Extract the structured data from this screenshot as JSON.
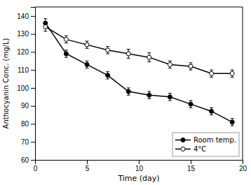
{
  "chart_data": {
    "type": "line",
    "xlabel": "Time (day)",
    "ylabel": "Anthocyanin Conc. (mg/L)",
    "x": [
      1,
      3,
      5,
      7,
      9,
      11,
      13,
      15,
      17,
      19
    ],
    "series": [
      {
        "name": "Room temp.",
        "color": "black",
        "marker": "circle",
        "line_style": "solid",
        "values": [
          136,
          119,
          113,
          107,
          98,
          96,
          95,
          91,
          87,
          81
        ],
        "errors": [
          2.5,
          2.0,
          2.0,
          2.0,
          2.0,
          2.0,
          2.0,
          2.0,
          2.0,
          2.0
        ]
      },
      {
        "name": "4°C",
        "color": "black",
        "marker": "open-circle",
        "line_style": "solid",
        "values": [
          134,
          127,
          124,
          121,
          119,
          117,
          113,
          112,
          108,
          108
        ],
        "errors": [
          2.5,
          2.0,
          2.0,
          2.0,
          2.5,
          2.5,
          2.0,
          2.0,
          2.0,
          2.0
        ]
      }
    ],
    "xlim": [
      0,
      20
    ],
    "ylim": [
      60,
      145
    ],
    "xticks": [
      0,
      5,
      10,
      15,
      20
    ],
    "yticks": [
      60,
      70,
      80,
      90,
      100,
      110,
      120,
      130,
      140
    ],
    "grid": false,
    "legend": "lower right"
  }
}
